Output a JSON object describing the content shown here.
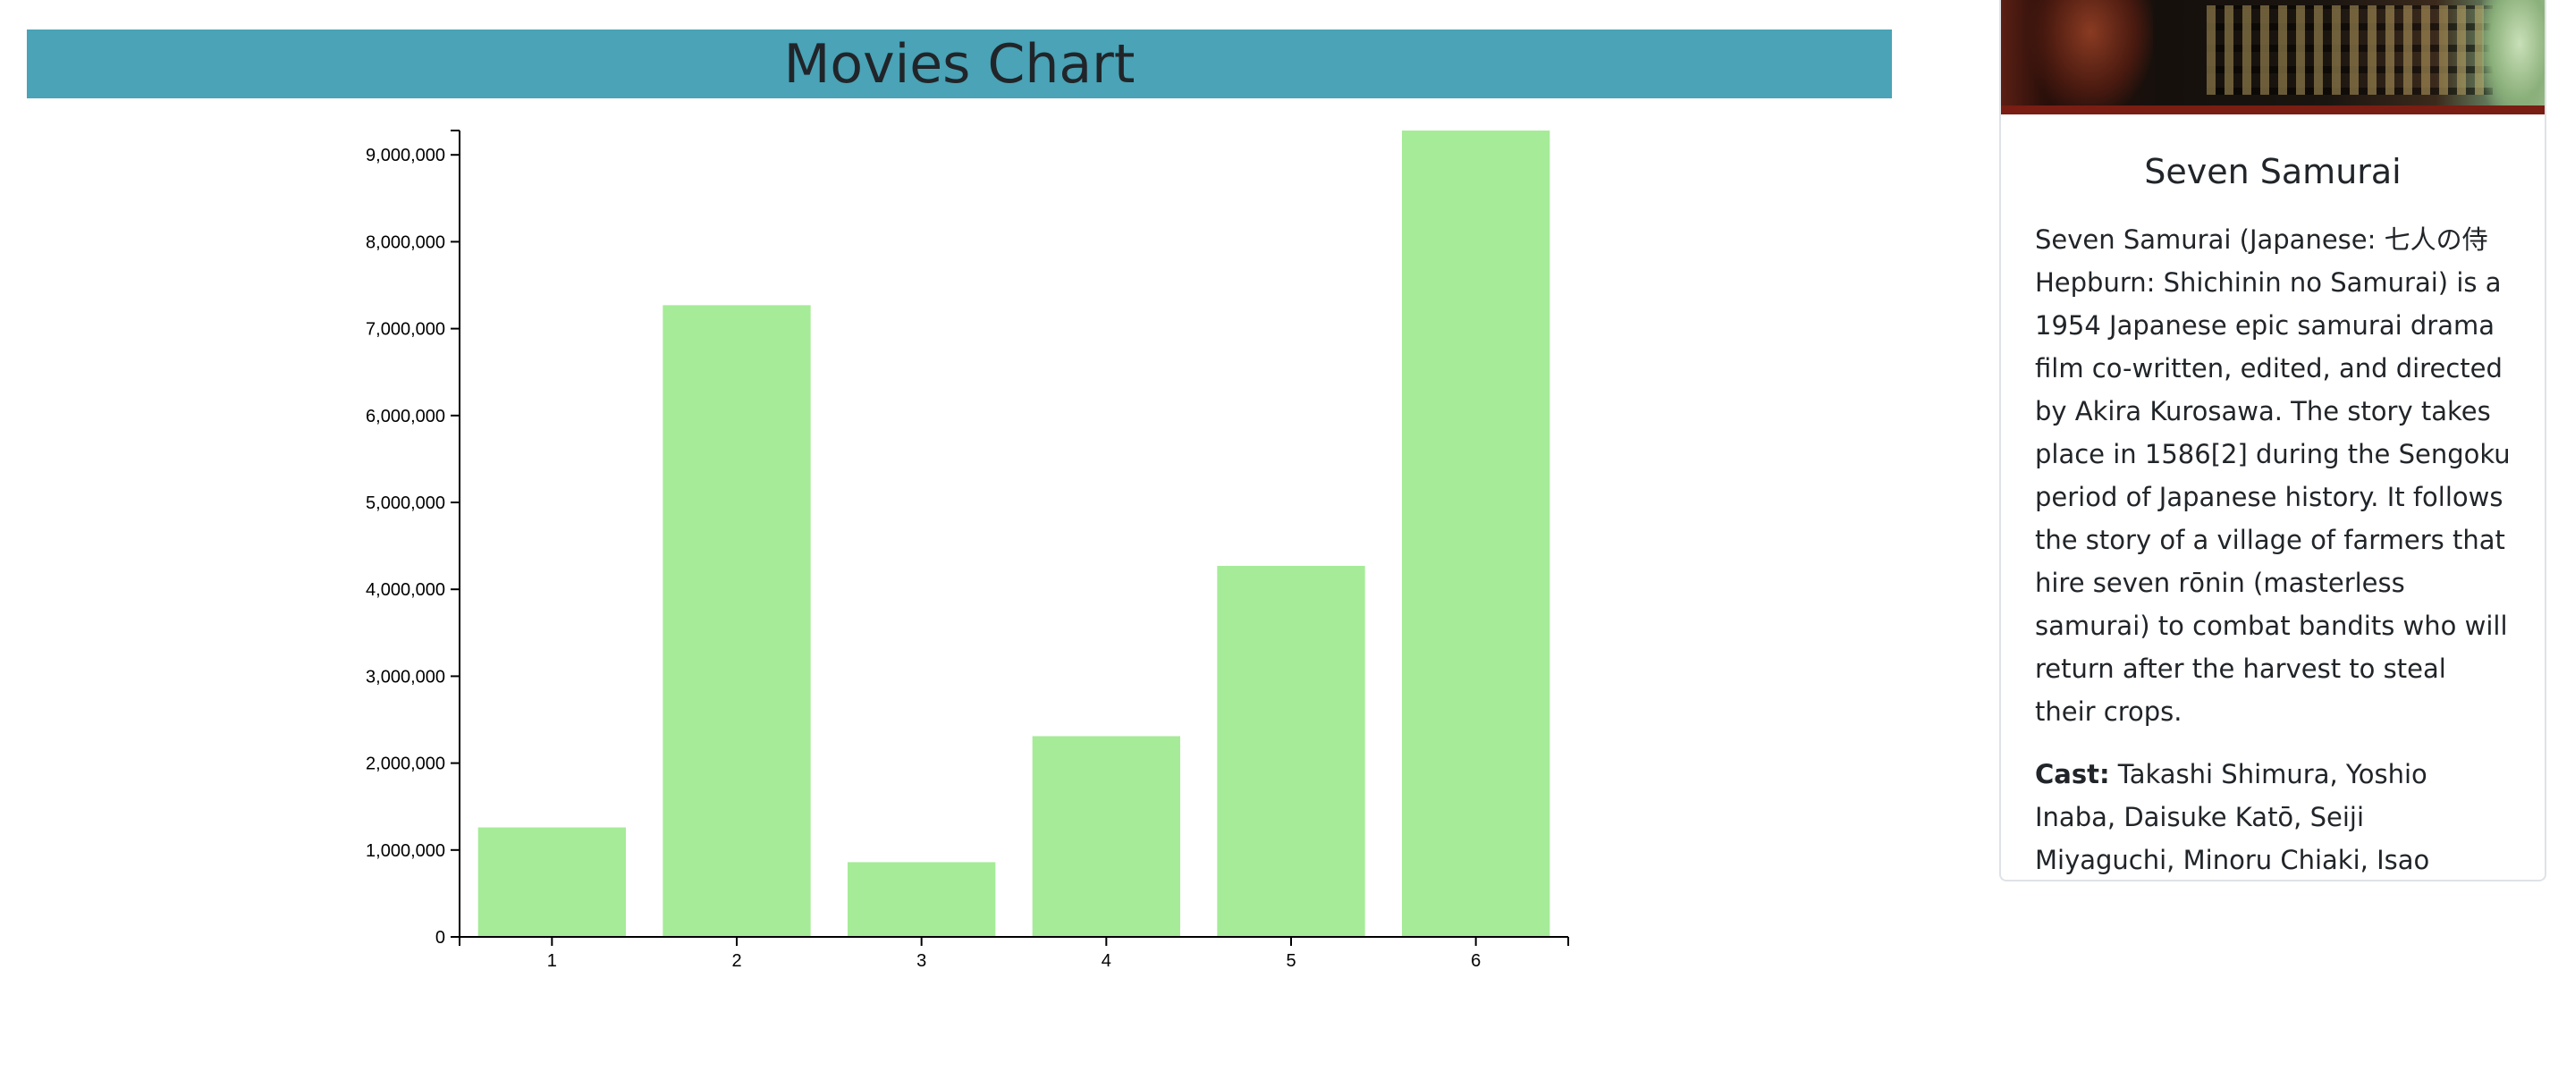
{
  "header": {
    "title": "Movies Chart",
    "bar_color": "#4aa3b6"
  },
  "chart_data": {
    "type": "bar",
    "title": "Movies Chart",
    "xlabel": "",
    "ylabel": "",
    "categories": [
      "1",
      "2",
      "3",
      "4",
      "5",
      "6"
    ],
    "values": [
      1260000,
      7270000,
      860000,
      2310000,
      4270000,
      9280000
    ],
    "ylim": [
      0,
      9280000
    ],
    "yticks": [
      0,
      1000000,
      2000000,
      3000000,
      4000000,
      5000000,
      6000000,
      7000000,
      8000000,
      9000000
    ],
    "ytick_labels": [
      "0",
      "1,000,000",
      "2,000,000",
      "3,000,000",
      "4,000,000",
      "5,000,000",
      "6,000,000",
      "7,000,000",
      "8,000,000",
      "9,000,000"
    ],
    "bar_color": "#a6eb98",
    "grid": false,
    "legend": "none"
  },
  "card": {
    "image_alt": "Seven Samurai poster",
    "title": "Seven Samurai",
    "description": "Seven Samurai (Japanese: 七人の侍 Hepburn: Shichinin no Samurai) is a 1954 Japanese epic samurai drama film co-written, edited, and directed by Akira Kurosawa. The story takes place in 1586[2] during the Sengoku period of Japanese history. It follows the story of a village of farmers that hire seven rōnin (masterless samurai) to combat bandits who will return after the harvest to steal their crops.",
    "cast_label": "Cast:",
    "cast": "Takashi Shimura, Yoshio Inaba, Daisuke Katō, Seiji Miyaguchi, Minoru Chiaki, Isao Kimura, Toshiro Mifune"
  }
}
